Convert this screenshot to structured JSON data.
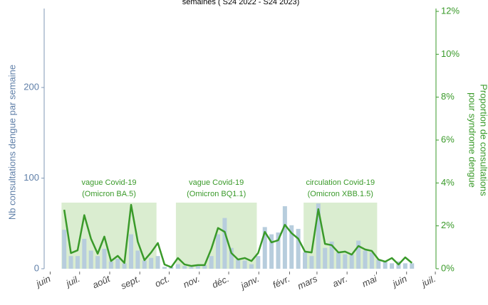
{
  "chart_data": {
    "type": "bar",
    "title": "semaines ( S24 2022 - S24 2023)",
    "y_label": "Nb consultations dengue par semaine",
    "y2_label": [
      "Proportion de consultations",
      "pour syndrome dengue"
    ],
    "x": [
      0,
      1,
      2,
      3,
      4,
      5,
      6,
      7,
      8,
      9,
      10,
      11,
      12,
      13,
      14,
      15,
      16,
      17,
      18,
      19,
      20,
      21,
      22,
      23,
      24,
      25,
      26,
      27,
      28,
      29,
      30,
      31,
      32,
      33,
      34,
      35,
      36,
      37,
      38,
      39,
      40,
      41,
      42,
      43,
      44,
      45,
      46,
      47,
      48,
      49,
      50,
      51,
      52
    ],
    "xlim": [
      -3,
      55.6
    ],
    "xticks": [
      {
        "value": -2.1,
        "label": "juin"
      },
      {
        "value": 2.3,
        "label": "juil."
      },
      {
        "value": 6.8,
        "label": "août"
      },
      {
        "value": 11.3,
        "label": "sept."
      },
      {
        "value": 15.7,
        "label": "oct."
      },
      {
        "value": 20.2,
        "label": "nov."
      },
      {
        "value": 24.6,
        "label": "déc."
      },
      {
        "value": 29.1,
        "label": "janv."
      },
      {
        "value": 33.7,
        "label": "févr."
      },
      {
        "value": 37.8,
        "label": "mars"
      },
      {
        "value": 42.3,
        "label": "avr."
      },
      {
        "value": 46.7,
        "label": "mai"
      },
      {
        "value": 51.2,
        "label": "juin"
      },
      {
        "value": 55.5,
        "label": "juil."
      }
    ],
    "ylim": [
      0,
      284
    ],
    "yticks": [
      0,
      100,
      200
    ],
    "y2lim": [
      0,
      12
    ],
    "y2ticks": [
      {
        "value": 0,
        "label": "0%"
      },
      {
        "value": 2,
        "label": "2%"
      },
      {
        "value": 4,
        "label": "4%"
      },
      {
        "value": 6,
        "label": "6%"
      },
      {
        "value": 8,
        "label": "8%"
      },
      {
        "value": 10,
        "label": "10%"
      },
      {
        "value": 12,
        "label": "12%"
      }
    ],
    "series": [
      {
        "type": "bar",
        "color": "#b7cddd",
        "values": [
          43,
          14,
          14,
          33,
          20,
          14,
          22,
          8,
          11,
          6,
          38,
          20,
          9,
          12,
          14,
          2,
          2,
          5,
          3,
          2,
          3,
          4,
          14,
          38,
          56,
          23,
          11,
          9,
          5,
          14,
          46,
          38,
          40,
          69,
          48,
          44,
          18,
          14,
          72,
          23,
          30,
          18,
          16,
          16,
          31,
          20,
          18,
          10,
          8,
          6,
          8,
          6,
          6
        ]
      },
      {
        "type": "line",
        "axis": "y2",
        "color": "#3a9a2a",
        "values": [
          2.75,
          0.73,
          0.86,
          2.5,
          1.4,
          0.7,
          1.5,
          0.36,
          0.6,
          0.27,
          2.98,
          1.26,
          0.4,
          0.76,
          1.2,
          0.2,
          0.07,
          0.5,
          0.2,
          0.13,
          0.17,
          0.17,
          0.93,
          1.9,
          1.72,
          0.73,
          0.43,
          0.5,
          0.36,
          0.73,
          1.72,
          1.23,
          1.33,
          2.05,
          1.66,
          1.4,
          0.8,
          0.76,
          2.78,
          1.16,
          1.1,
          0.76,
          0.8,
          0.66,
          1.06,
          0.9,
          0.83,
          0.43,
          0.33,
          0.5,
          0.2,
          0.53,
          0.27
        ]
      }
    ],
    "shaded_regions": [
      {
        "xlim": [
          -0.4,
          13.8
        ],
        "label": [
          "vague Covid-19",
          "(Omicron BA.5)"
        ]
      },
      {
        "xlim": [
          16.7,
          28.8
        ],
        "label": [
          "vague Covid-19",
          "(Omicron BQ1.1)"
        ]
      },
      {
        "xlim": [
          35.8,
          46.8
        ],
        "label": [
          "circulation Covid-19",
          "(Omicron XBB.1.5)"
        ]
      }
    ],
    "shade_color": "#d3eac8"
  }
}
